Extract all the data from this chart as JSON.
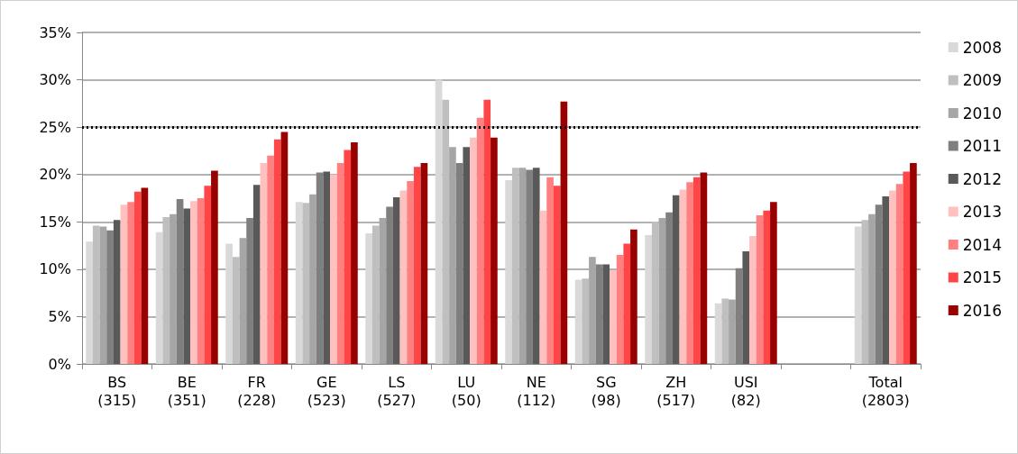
{
  "chart_data": {
    "type": "bar",
    "categories": [
      "BS\n(315)",
      "BE\n(351)",
      "FR\n(228)",
      "GE\n(523)",
      "LS\n(527)",
      "LU\n(50)",
      "NE\n(112)",
      "SG\n(98)",
      "ZH\n(517)",
      "USI\n(82)",
      null,
      "Total\n(2803)"
    ],
    "series": [
      {
        "name": "2008",
        "color": "#d9d9d9",
        "values": [
          12.9,
          13.9,
          12.7,
          17.1,
          13.8,
          30.0,
          19.4,
          8.9,
          13.6,
          6.4,
          null,
          14.5
        ]
      },
      {
        "name": "2009",
        "color": "#bfbfbf",
        "values": [
          14.6,
          15.5,
          11.3,
          17.0,
          14.6,
          27.9,
          20.7,
          9.0,
          15.0,
          6.9,
          null,
          15.2
        ]
      },
      {
        "name": "2010",
        "color": "#a6a6a6",
        "values": [
          14.5,
          15.8,
          13.3,
          17.9,
          15.4,
          22.9,
          20.7,
          11.3,
          15.4,
          6.8,
          null,
          15.8
        ]
      },
      {
        "name": "2011",
        "color": "#7f7f7f",
        "values": [
          14.1,
          17.4,
          15.4,
          20.2,
          16.6,
          21.2,
          20.5,
          10.5,
          16.0,
          10.1,
          null,
          16.8
        ]
      },
      {
        "name": "2012",
        "color": "#595959",
        "values": [
          15.2,
          16.4,
          18.9,
          20.3,
          17.6,
          22.9,
          20.7,
          10.5,
          17.8,
          11.9,
          null,
          17.7
        ]
      },
      {
        "name": "2013",
        "color": "#ffc0c0",
        "values": [
          16.8,
          17.2,
          21.2,
          20.0,
          18.3,
          23.9,
          16.2,
          9.9,
          18.4,
          13.5,
          null,
          18.3
        ]
      },
      {
        "name": "2014",
        "color": "#ff8080",
        "values": [
          17.1,
          17.5,
          22.0,
          21.2,
          19.3,
          26.0,
          19.7,
          11.5,
          19.2,
          15.7,
          null,
          19.0
        ]
      },
      {
        "name": "2015",
        "color": "#ff4545",
        "values": [
          18.2,
          18.8,
          23.7,
          22.6,
          20.8,
          27.9,
          18.8,
          12.7,
          19.7,
          16.2,
          null,
          20.3
        ]
      },
      {
        "name": "2016",
        "color": "#990000",
        "values": [
          18.6,
          20.4,
          24.5,
          23.4,
          21.2,
          23.9,
          27.7,
          14.2,
          20.2,
          17.1,
          null,
          21.2
        ]
      }
    ],
    "ylim": [
      0,
      35
    ],
    "yticks": [
      {
        "value": 0,
        "label": "0%"
      },
      {
        "value": 5,
        "label": "5%"
      },
      {
        "value": 10,
        "label": "10%"
      },
      {
        "value": 15,
        "label": "15%"
      },
      {
        "value": 20,
        "label": "20%"
      },
      {
        "value": 25,
        "label": "25%"
      },
      {
        "value": 30,
        "label": "30%"
      },
      {
        "value": 35,
        "label": "35%"
      }
    ],
    "grid": "y",
    "legend": "right",
    "ref_lines": [
      {
        "axis": "y",
        "value": 25,
        "color": "#000000",
        "line_style": "dotted"
      }
    ]
  }
}
